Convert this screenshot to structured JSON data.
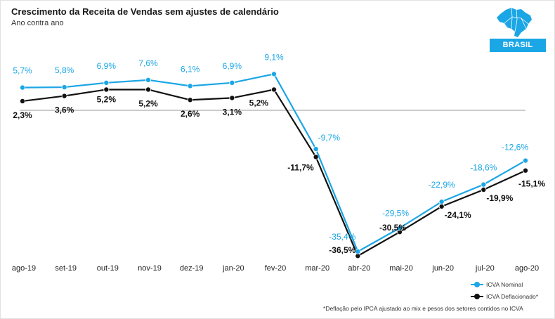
{
  "header": {
    "title": "Crescimento da Receita de Vendas sem ajustes de calendário",
    "subtitle": "Ano contra ano"
  },
  "badge": {
    "label": "BRASIL",
    "icon": "brazil-map-icon",
    "color": "#1ba6e6"
  },
  "footnote": "*Deflação pelo IPCA ajustado ao mix e pesos dos setores contidos no ICVA",
  "chart_data": {
    "type": "line",
    "title": "Crescimento da Receita de Vendas sem ajustes de calendário",
    "subtitle": "Ano contra ano",
    "categories": [
      "ago-19",
      "set-19",
      "out-19",
      "nov-19",
      "dez-19",
      "jan-20",
      "fev-20",
      "mar-20",
      "abr-20",
      "mai-20",
      "jun-20",
      "jul-20",
      "ago-20"
    ],
    "series": [
      {
        "name": "ICVA Nominal",
        "color": "#1ba6e6",
        "values": [
          5.7,
          5.8,
          6.9,
          7.6,
          6.1,
          6.9,
          9.1,
          -9.7,
          -35.4,
          -29.5,
          -22.9,
          -18.6,
          -12.6
        ],
        "labels": [
          "5,7%",
          "5,8%",
          "6,9%",
          "7,6%",
          "6,1%",
          "6,9%",
          "9,1%",
          "-9,7%",
          "-35,4%",
          "-29,5%",
          "-22,9%",
          "-18,6%",
          "-12,6%"
        ]
      },
      {
        "name": "ICVA Deflacionado*",
        "color": "#111111",
        "values": [
          2.3,
          3.6,
          5.2,
          5.2,
          2.6,
          3.1,
          5.2,
          -11.7,
          -36.5,
          -30.5,
          -24.1,
          -19.9,
          -15.1
        ],
        "labels": [
          "2,3%",
          "3,6%",
          "5,2%",
          "5,2%",
          "2,6%",
          "3,1%",
          "5,2%",
          "-11,7%",
          "-36,5%",
          "-30,5%",
          "-24,1%",
          "-19,9%",
          "-15,1%"
        ]
      }
    ],
    "ylim": [
      -37,
      10
    ],
    "zero_line": true,
    "grid": false,
    "legend": "bottom-right"
  }
}
